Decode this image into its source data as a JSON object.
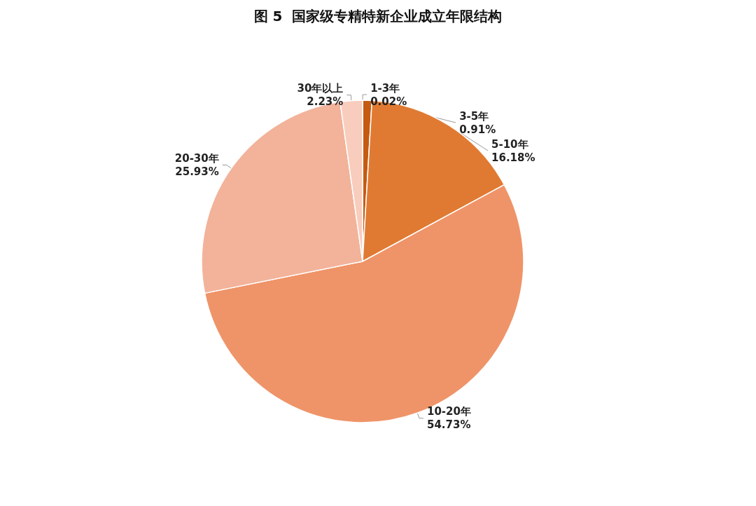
{
  "chart_data": {
    "type": "pie",
    "title": "图 5  国家级专精特新企业成立年限结构",
    "categories": [
      "1-3年",
      "3-5年",
      "5-10年",
      "10-20年",
      "20-30年",
      "30年以上"
    ],
    "values": [
      0.02,
      0.91,
      16.18,
      54.73,
      25.93,
      2.23
    ],
    "value_labels": [
      "0.02%",
      "0.91%",
      "16.18%",
      "54.73%",
      "25.93%",
      "2.23%"
    ],
    "colors": [
      "#843c0c",
      "#c55a11",
      "#e07a32",
      "#ef9468",
      "#f2b39a",
      "#f8cdbd"
    ],
    "legend": false
  }
}
